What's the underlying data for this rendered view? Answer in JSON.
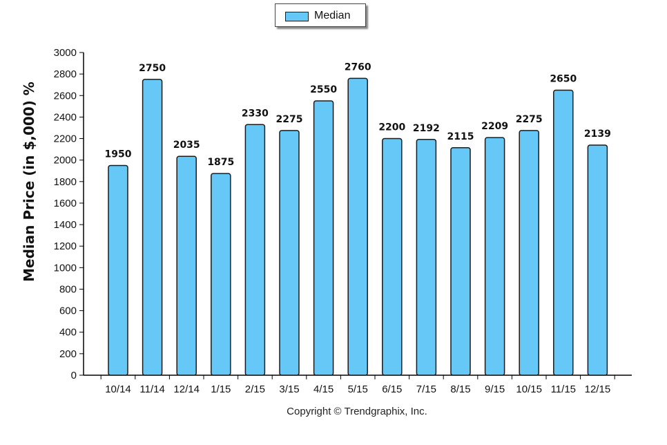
{
  "legend": {
    "series_name": "Median",
    "swatch_color": "#66c8f6"
  },
  "axes": {
    "ylabel": "Median Price (in $,000) %"
  },
  "footer": {
    "copyright": "Copyright © Trendgraphix, Inc."
  },
  "colors": {
    "bar_fill": "#66c8f6",
    "bar_stroke": "#1a1a1a",
    "axis": "#000000"
  },
  "chart_data": {
    "type": "bar",
    "categories": [
      "10/14",
      "11/14",
      "12/14",
      "1/15",
      "2/15",
      "3/15",
      "4/15",
      "5/15",
      "6/15",
      "7/15",
      "8/15",
      "9/15",
      "10/15",
      "11/15",
      "12/15"
    ],
    "series": [
      {
        "name": "Median",
        "values": [
          1950,
          2750,
          2035,
          1875,
          2330,
          2275,
          2550,
          2760,
          2200,
          2192,
          2115,
          2209,
          2275,
          2650,
          2139
        ]
      }
    ],
    "xlabel": "",
    "ylabel": "Median Price (in $,000) %",
    "ylim": [
      0,
      3000
    ],
    "yticks": [
      0,
      200,
      400,
      600,
      800,
      1000,
      1200,
      1400,
      1600,
      1800,
      2000,
      2200,
      2400,
      2600,
      2800,
      3000
    ],
    "data_labels": true,
    "grid": false,
    "legend_position": "top-center"
  }
}
